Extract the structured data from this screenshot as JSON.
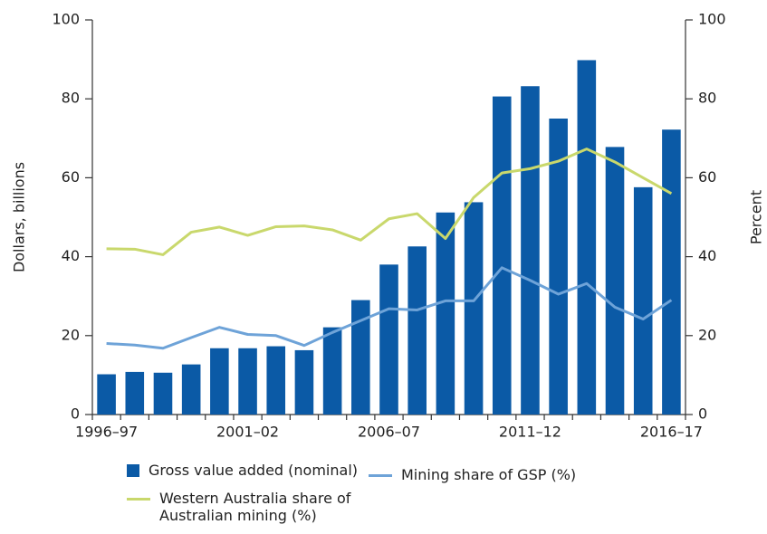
{
  "chart_data": {
    "type": "bar_line",
    "categories": [
      "1996–97",
      null,
      null,
      null,
      null,
      "2001–02",
      null,
      null,
      null,
      null,
      "2006–07",
      null,
      null,
      null,
      null,
      "2011–12",
      null,
      null,
      null,
      null,
      "2016–17"
    ],
    "series": [
      {
        "name": "Gross value added (nominal)",
        "type": "bar",
        "color": "#0b5aa6",
        "axis": "y",
        "values": [
          10.2,
          10.8,
          10.6,
          12.7,
          16.8,
          16.8,
          17.3,
          16.3,
          22.1,
          29.0,
          38.0,
          42.6,
          51.2,
          53.8,
          80.6,
          83.2,
          75.0,
          89.8,
          67.8,
          57.6,
          72.2
        ]
      },
      {
        "name": "Mining share of GSP (%)",
        "type": "line",
        "color": "#6ea3d8",
        "axis": "y2",
        "values": [
          18,
          17.6,
          16.8,
          19.5,
          22.1,
          20.3,
          20,
          17.5,
          20.8,
          23.8,
          26.8,
          26.5,
          28.8,
          28.8,
          37.2,
          34,
          30.5,
          33.2,
          27.2,
          24.2,
          29
        ]
      },
      {
        "name": "Western Australia share of Australian mining (%)",
        "type": "line",
        "color": "#c9d86c",
        "axis": "y2",
        "values": [
          42,
          41.9,
          40.5,
          46.2,
          47.5,
          45.4,
          47.6,
          47.8,
          46.8,
          44.2,
          49.6,
          50.9,
          44.6,
          55,
          61.2,
          62.3,
          64.2,
          67.3,
          64,
          60,
          56
        ]
      }
    ],
    "y_label": "Dollars, billions",
    "y2_label": "Percent",
    "ylim": [
      0,
      100
    ],
    "yticks": [
      0,
      20,
      40,
      60,
      80,
      100
    ],
    "y2lim": [
      0,
      100
    ],
    "y2ticks": [
      0,
      20,
      40,
      60,
      80,
      100
    ],
    "legend": "bottom"
  }
}
